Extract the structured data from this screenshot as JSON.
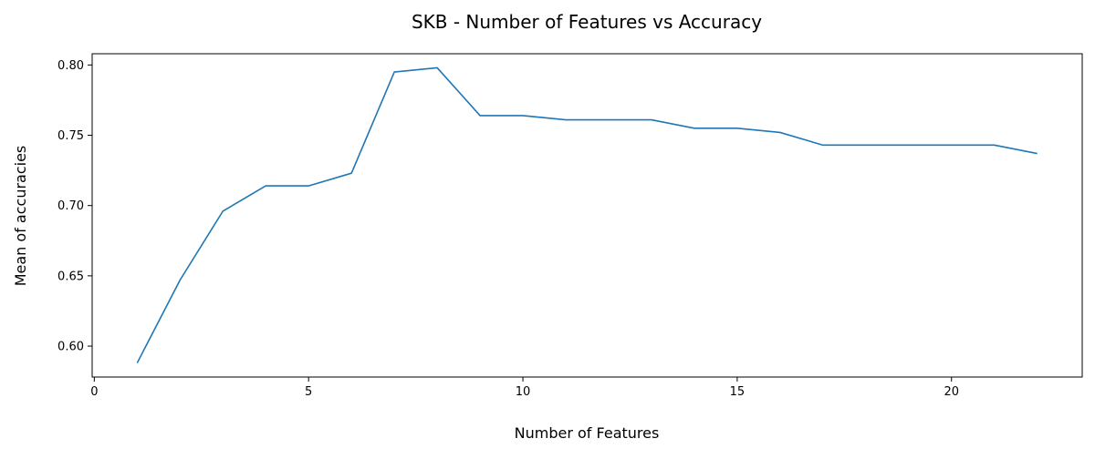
{
  "chart_data": {
    "type": "line",
    "title": "SKB - Number of Features vs Accuracy",
    "xlabel": "Number of Features",
    "ylabel": "Mean of accuracies",
    "xlim": [
      -0.05,
      23.05
    ],
    "ylim": [
      0.578,
      0.808
    ],
    "x_ticks": [
      0,
      5,
      10,
      15,
      20
    ],
    "x_tick_labels": [
      "0",
      "5",
      "10",
      "15",
      "20"
    ],
    "y_ticks": [
      0.6,
      0.65,
      0.7,
      0.75,
      0.8
    ],
    "y_tick_labels": [
      "0.60",
      "0.65",
      "0.70",
      "0.75",
      "0.80"
    ],
    "grid": false,
    "series": [
      {
        "color": "#1f77b4",
        "x": [
          1,
          2,
          3,
          4,
          5,
          6,
          7,
          8,
          9,
          10,
          11,
          12,
          13,
          14,
          15,
          16,
          17,
          18,
          19,
          20,
          21,
          22
        ],
        "y": [
          0.588,
          0.647,
          0.696,
          0.714,
          0.714,
          0.723,
          0.795,
          0.798,
          0.764,
          0.764,
          0.761,
          0.761,
          0.761,
          0.755,
          0.755,
          0.752,
          0.743,
          0.743,
          0.743,
          0.743,
          0.743,
          0.737
        ]
      }
    ]
  }
}
